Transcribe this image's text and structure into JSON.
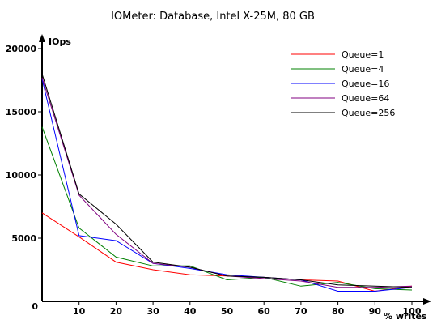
{
  "chart_data": {
    "type": "line",
    "title": "IOMeter: Database, Intel X-25M, 80 GB",
    "xlabel": "% writes",
    "ylabel": "IOps",
    "x": [
      0,
      10,
      20,
      30,
      40,
      50,
      60,
      70,
      80,
      90,
      100
    ],
    "xlim": [
      0,
      100
    ],
    "ylim": [
      0,
      20000
    ],
    "xticks": [
      "0",
      "10",
      "20",
      "30",
      "40",
      "50",
      "60",
      "70",
      "80",
      "90",
      "100"
    ],
    "yticks": [
      "5000",
      "10000",
      "15000",
      "20000"
    ],
    "origin_label": "0",
    "grid": false,
    "legend_position": "top-right",
    "series": [
      {
        "name": "Queue=1",
        "color": "#ff0000",
        "values": [
          7000,
          5100,
          3100,
          2500,
          2100,
          2000,
          1900,
          1700,
          1600,
          800,
          1200
        ]
      },
      {
        "name": "Queue=4",
        "color": "#008000",
        "values": [
          13800,
          5800,
          3500,
          2800,
          2800,
          1700,
          1900,
          1200,
          1500,
          1000,
          900
        ]
      },
      {
        "name": "Queue=16",
        "color": "#0000ff",
        "values": [
          17600,
          5200,
          4800,
          3000,
          2600,
          2100,
          1900,
          1700,
          800,
          800,
          1100
        ]
      },
      {
        "name": "Queue=64",
        "color": "#800080",
        "values": [
          17700,
          8400,
          5300,
          3000,
          2700,
          2000,
          1800,
          1600,
          1100,
          1100,
          1200
        ]
      },
      {
        "name": "Queue=256",
        "color": "#000000",
        "values": [
          18000,
          8500,
          6100,
          3100,
          2700,
          2000,
          1900,
          1700,
          1300,
          1200,
          1100
        ]
      }
    ]
  }
}
